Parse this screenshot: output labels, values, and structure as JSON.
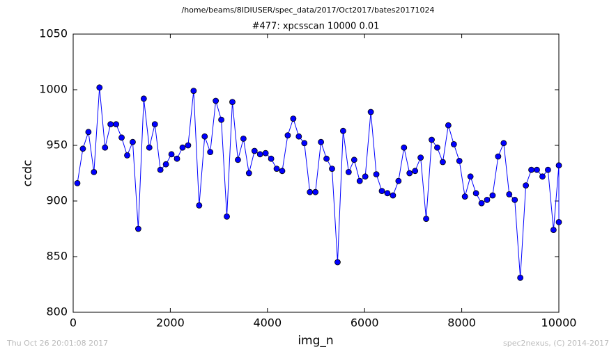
{
  "chart_data": {
    "type": "line",
    "suptitle": "/home/beams/8IDIUSER/spec_data/2017/Oct2017/bates20171024",
    "title": "#477: xpcsscan 10000 0.01",
    "xlabel": "img_n",
    "ylabel": "ccdc",
    "footer_left": "Thu Oct 26 20:01:08 2017",
    "footer_right": "spec2nexus, (C) 2014-2017",
    "color": "#0000ff",
    "marker_edge": "#000000",
    "grid": false,
    "xlim": [
      0,
      10000
    ],
    "xticks": [
      0,
      2000,
      4000,
      6000,
      8000,
      10000
    ],
    "ylim": [
      800,
      1050
    ],
    "yticks": [
      800,
      850,
      900,
      950,
      1000,
      1050
    ],
    "x": [
      86,
      200,
      314,
      428,
      542,
      656,
      770,
      884,
      998,
      1112,
      1226,
      1340,
      1454,
      1568,
      1682,
      1796,
      1910,
      2024,
      2138,
      2252,
      2366,
      2480,
      2594,
      2708,
      2822,
      2936,
      3050,
      3164,
      3278,
      3392,
      3506,
      3620,
      3734,
      3848,
      3962,
      4076,
      4190,
      4304,
      4418,
      4532,
      4646,
      4760,
      4874,
      4988,
      5102,
      5216,
      5330,
      5444,
      5558,
      5672,
      5786,
      5900,
      6014,
      6128,
      6242,
      6356,
      6470,
      6584,
      6698,
      6812,
      6926,
      7040,
      7154,
      7268,
      7382,
      7496,
      7610,
      7724,
      7838,
      7952,
      8066,
      8180,
      8294,
      8408,
      8522,
      8636,
      8750,
      8864,
      8978,
      9092,
      9206,
      9320,
      9434,
      9548,
      9662,
      9776,
      9890,
      10000,
      10000
    ],
    "values": [
      916,
      947,
      962,
      926,
      1002,
      948,
      969,
      969,
      957,
      941,
      953,
      875,
      992,
      948,
      969,
      928,
      933,
      942,
      938,
      948,
      950,
      999,
      896,
      958,
      944,
      990,
      973,
      886,
      989,
      937,
      956,
      925,
      945,
      942,
      943,
      938,
      929,
      927,
      959,
      974,
      958,
      952,
      908,
      908,
      953,
      938,
      929,
      845,
      963,
      926,
      937,
      918,
      922,
      980,
      924,
      909,
      907,
      905,
      918,
      948,
      925,
      927,
      939,
      884,
      955,
      948,
      935,
      968,
      951,
      936,
      904,
      922,
      907,
      898,
      901,
      905,
      940,
      952,
      906,
      901,
      831,
      914,
      928,
      928,
      922,
      928,
      874,
      932,
      881
    ]
  }
}
